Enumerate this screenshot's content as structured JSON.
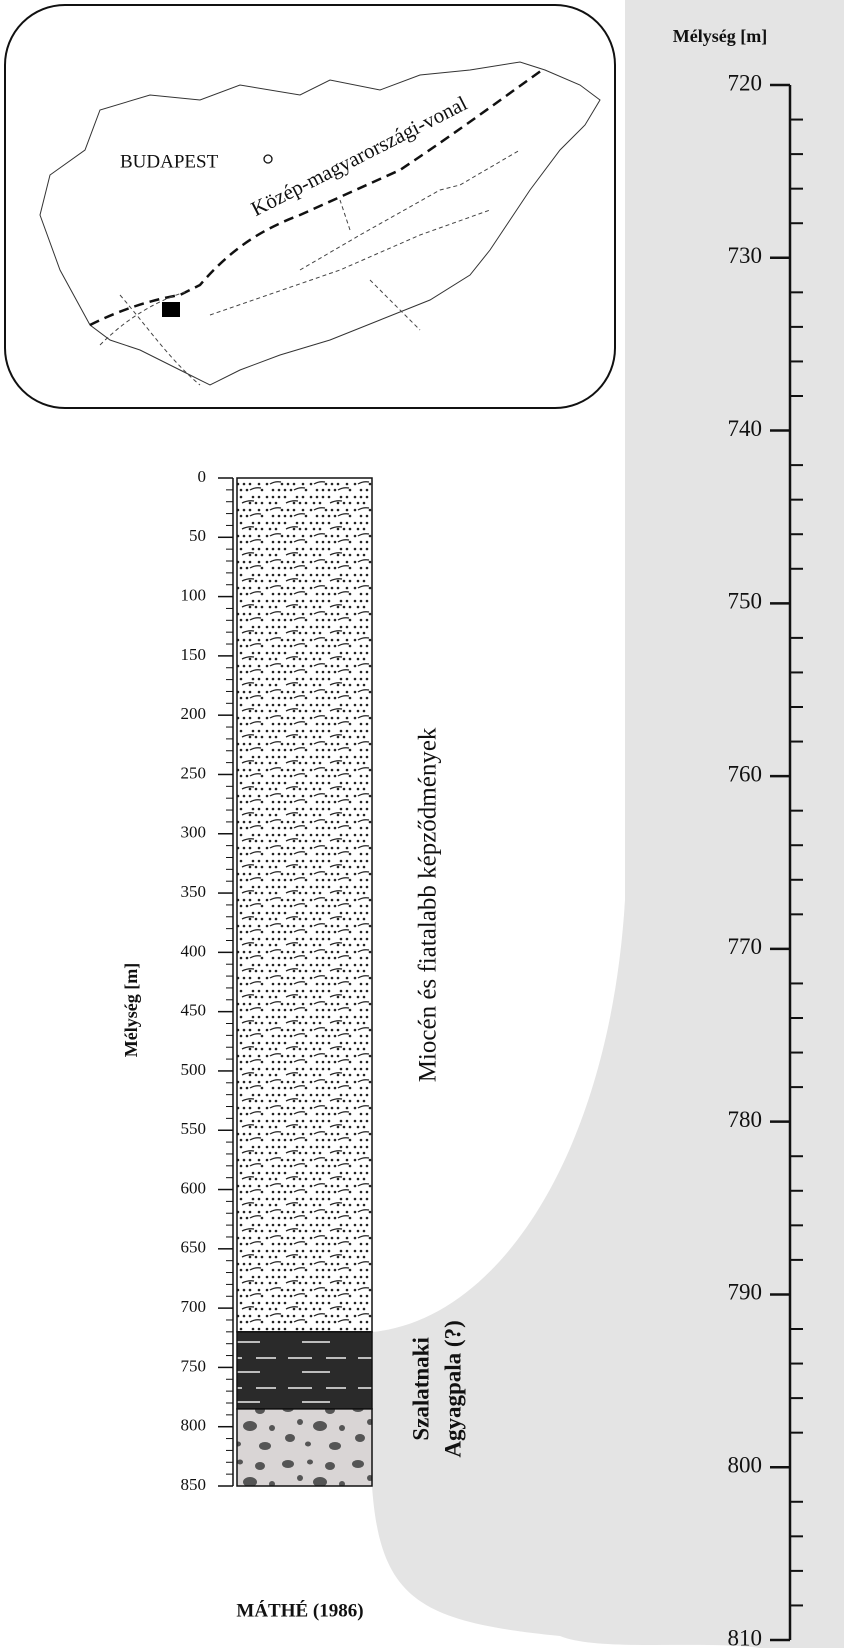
{
  "map": {
    "city": "BUDAPEST",
    "line_label": "Közép-magyarországi-vonal"
  },
  "column": {
    "axis_label": "Mélység [m]",
    "ticks": [
      0,
      50,
      100,
      150,
      200,
      250,
      300,
      350,
      400,
      450,
      500,
      550,
      600,
      650,
      700,
      750,
      800,
      850
    ],
    "units": [
      {
        "name": "Miocén és fiatalabb képződmények",
        "top": 0,
        "base": 720
      },
      {
        "name": [
          "Szalatnaki",
          "Agyagpala (?)"
        ],
        "top": 720,
        "base": 785
      },
      {
        "top": 785,
        "base": 850
      }
    ],
    "credit": "MÁTHÉ (1986)"
  },
  "detail": {
    "axis_label": "Mélység [m]",
    "ticks": [
      720,
      730,
      740,
      750,
      760,
      770,
      780,
      790,
      800,
      810
    ]
  }
}
